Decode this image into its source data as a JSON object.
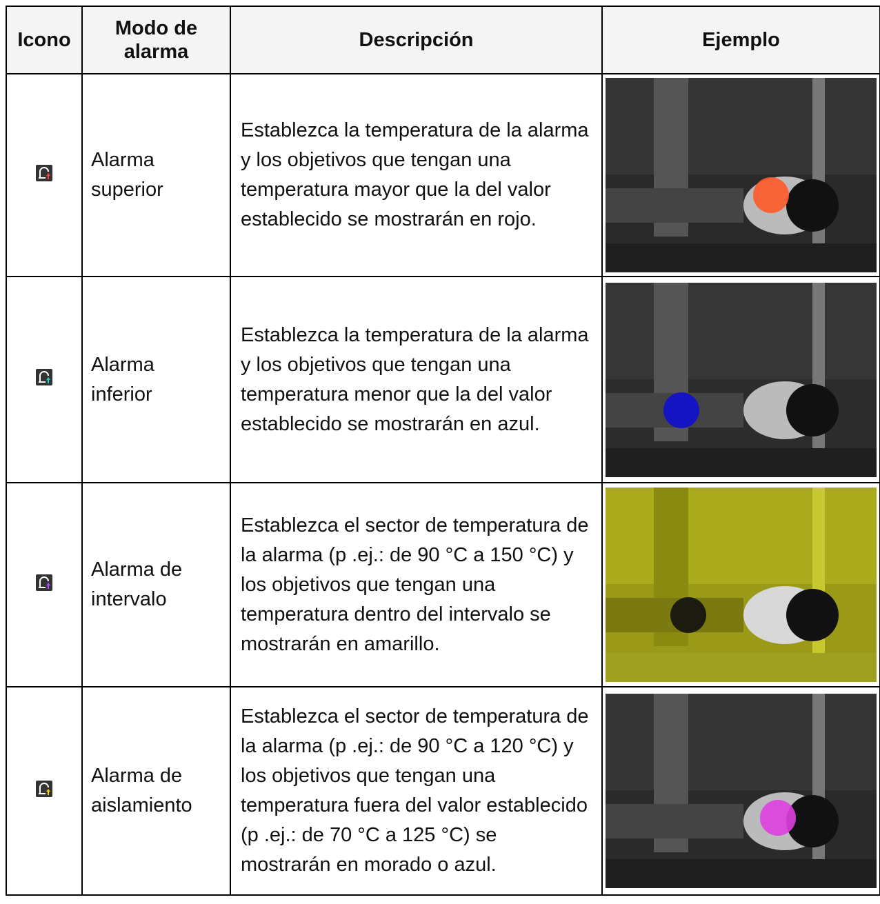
{
  "table": {
    "header": [
      "Icono",
      "Modo de alarma",
      "Descripción",
      "Ejemplo"
    ],
    "rows": [
      {
        "mode": "Alarma superior",
        "description": "Establezca la temperatura de la alarma y los objetivos que tengan una temperatura mayor que la del valor establecido se mostrarán en rojo."
      },
      {
        "mode": "Alarma inferior",
        "description": "Establezca la temperatura de la alarma y los objetivos que tengan una temperatura menor que la del valor establecido se mostrarán en azul."
      },
      {
        "mode": "Alarma de intervalo",
        "description": "Establezca el sector de temperatura de la alarma (p .ej.: de 90 °C a 150 °C) y los objetivos que tengan una temperatura dentro del intervalo se mostrarán en amarillo."
      },
      {
        "mode": "Alarma de aislamiento",
        "description": "Establezca el sector de temperatura de la alarma (p .ej.: de 90 °C a 120 °C) y los objetivos que tengan una temperatura fuera del valor establecido (p .ej.: de 70 °C a 125 °C) se mostrarán en morado o azul."
      }
    ]
  }
}
